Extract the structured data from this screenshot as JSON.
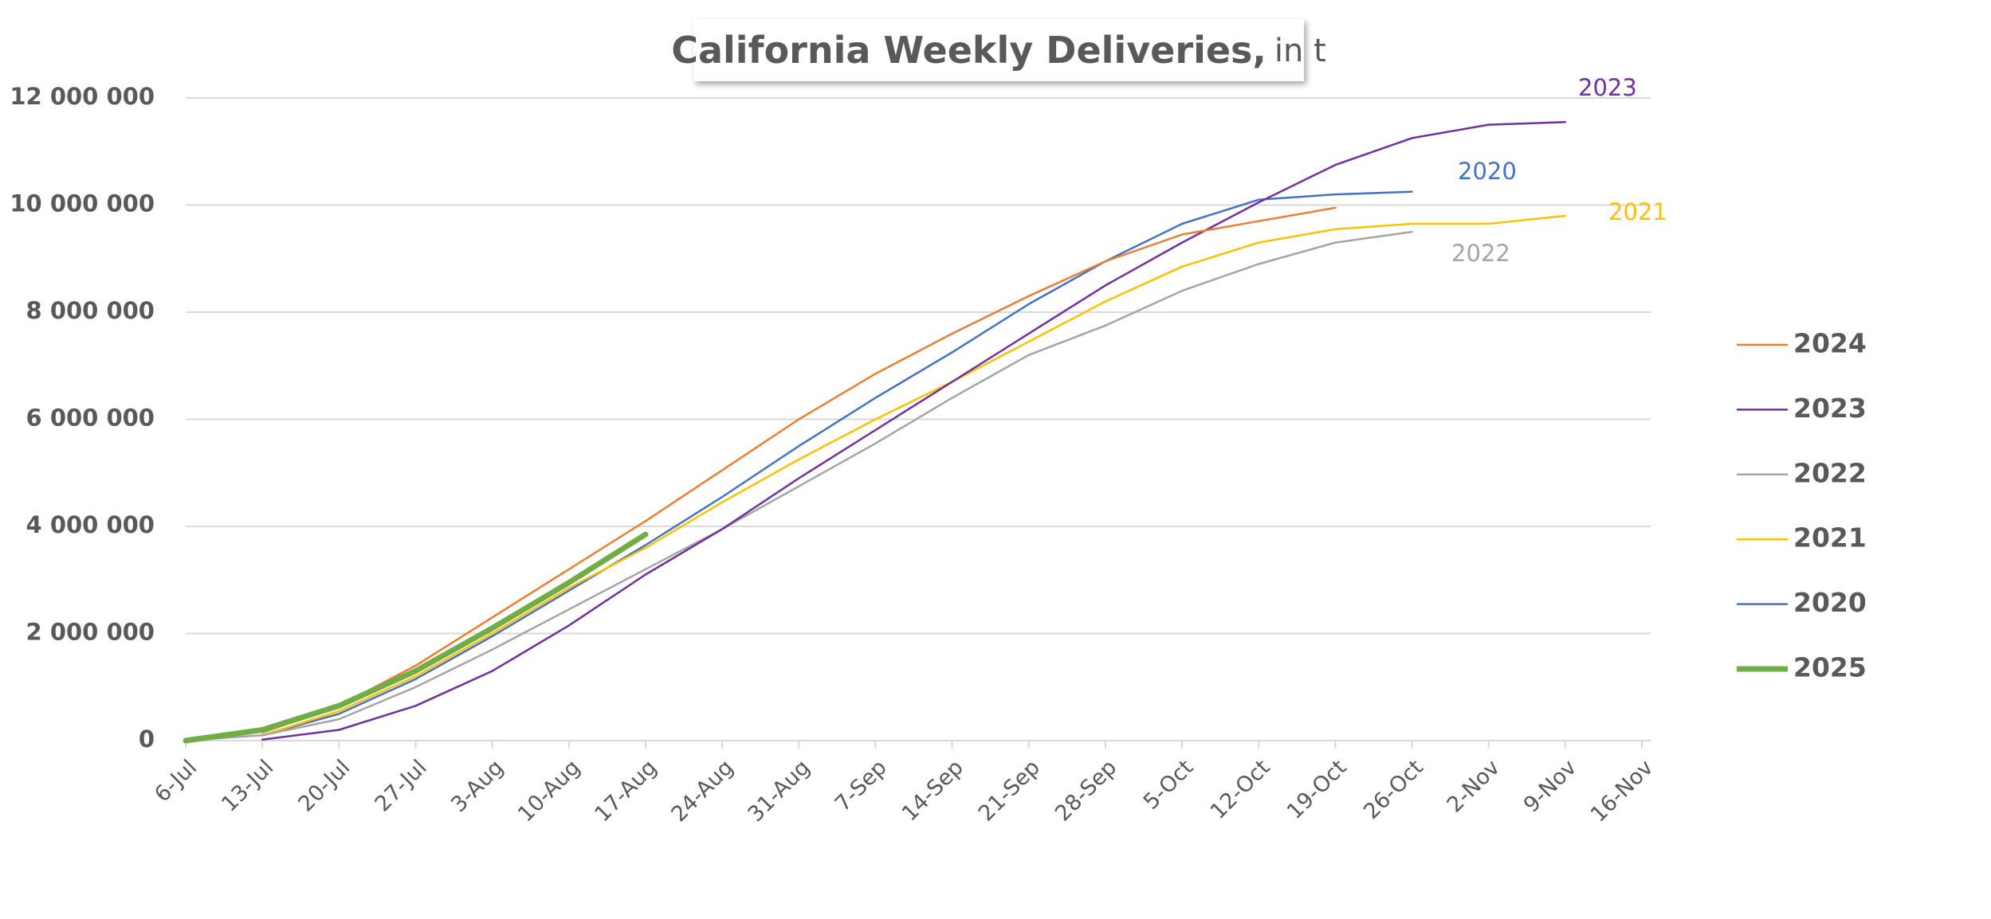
{
  "chart_data": {
    "type": "line",
    "title": "California Weekly Deliveries,",
    "unit": "in t",
    "categories": [
      "6-Jul",
      "13-Jul",
      "20-Jul",
      "27-Jul",
      "3-Aug",
      "10-Aug",
      "17-Aug",
      "24-Aug",
      "31-Aug",
      "7-Sep",
      "14-Sep",
      "21-Sep",
      "28-Sep",
      "5-Oct",
      "12-Oct",
      "19-Oct",
      "26-Oct",
      "2-Nov",
      "9-Nov",
      "16-Nov"
    ],
    "series": [
      {
        "name": "2024",
        "color": "#ed7d31",
        "width": 2.5,
        "values": [
          null,
          150000,
          650000,
          1400000,
          2300000,
          3200000,
          4100000,
          5050000,
          6000000,
          6850000,
          7600000,
          8300000,
          8950000,
          9450000,
          9700000,
          9950000,
          null,
          null,
          null,
          null
        ]
      },
      {
        "name": "2023",
        "color": "#7030a0",
        "width": 2.5,
        "values": [
          null,
          20000,
          200000,
          650000,
          1300000,
          2150000,
          3100000,
          3950000,
          4900000,
          5800000,
          6700000,
          7600000,
          8500000,
          9300000,
          10050000,
          10750000,
          11250000,
          11500000,
          11550000,
          null
        ]
      },
      {
        "name": "2022",
        "color": "#a5a5a5",
        "width": 2.5,
        "values": [
          0,
          100000,
          400000,
          1000000,
          1700000,
          2450000,
          3200000,
          3950000,
          4750000,
          5550000,
          6400000,
          7200000,
          7750000,
          8400000,
          8900000,
          9300000,
          9500000,
          null,
          null,
          null
        ]
      },
      {
        "name": "2021",
        "color": "#ffc000",
        "width": 2.5,
        "values": [
          null,
          100000,
          550000,
          1200000,
          2000000,
          2850000,
          3600000,
          4450000,
          5250000,
          6000000,
          6700000,
          7450000,
          8200000,
          8850000,
          9300000,
          9550000,
          9650000,
          9650000,
          9800000,
          null
        ]
      },
      {
        "name": "2020",
        "color": "#4472c4",
        "width": 2.5,
        "values": [
          null,
          100000,
          500000,
          1150000,
          1950000,
          2800000,
          3650000,
          4550000,
          5500000,
          6400000,
          7250000,
          8150000,
          8950000,
          9650000,
          10100000,
          10200000,
          10250000,
          null,
          null,
          null
        ]
      },
      {
        "name": "2025",
        "color": "#70ad47",
        "width": 7,
        "values": [
          0,
          200000,
          650000,
          1300000,
          2100000,
          2950000,
          3850000,
          null,
          null,
          null,
          null,
          null,
          null,
          null,
          null,
          null,
          null,
          null,
          null,
          null
        ]
      }
    ],
    "ylim": [
      0,
      12000000
    ],
    "yticks": [
      0,
      {
        "value": 2000000,
        "label": "2 000 000"
      },
      {
        "value": 4000000,
        "label": "4 000 000"
      },
      {
        "value": 6000000,
        "label": "6 000 000"
      },
      {
        "value": 8000000,
        "label": "8 000 000"
      },
      {
        "value": 10000000,
        "label": "10 000 000"
      },
      {
        "value": 12000000,
        "label": "12 000 000"
      }
    ],
    "grid": true,
    "legend": "right"
  }
}
